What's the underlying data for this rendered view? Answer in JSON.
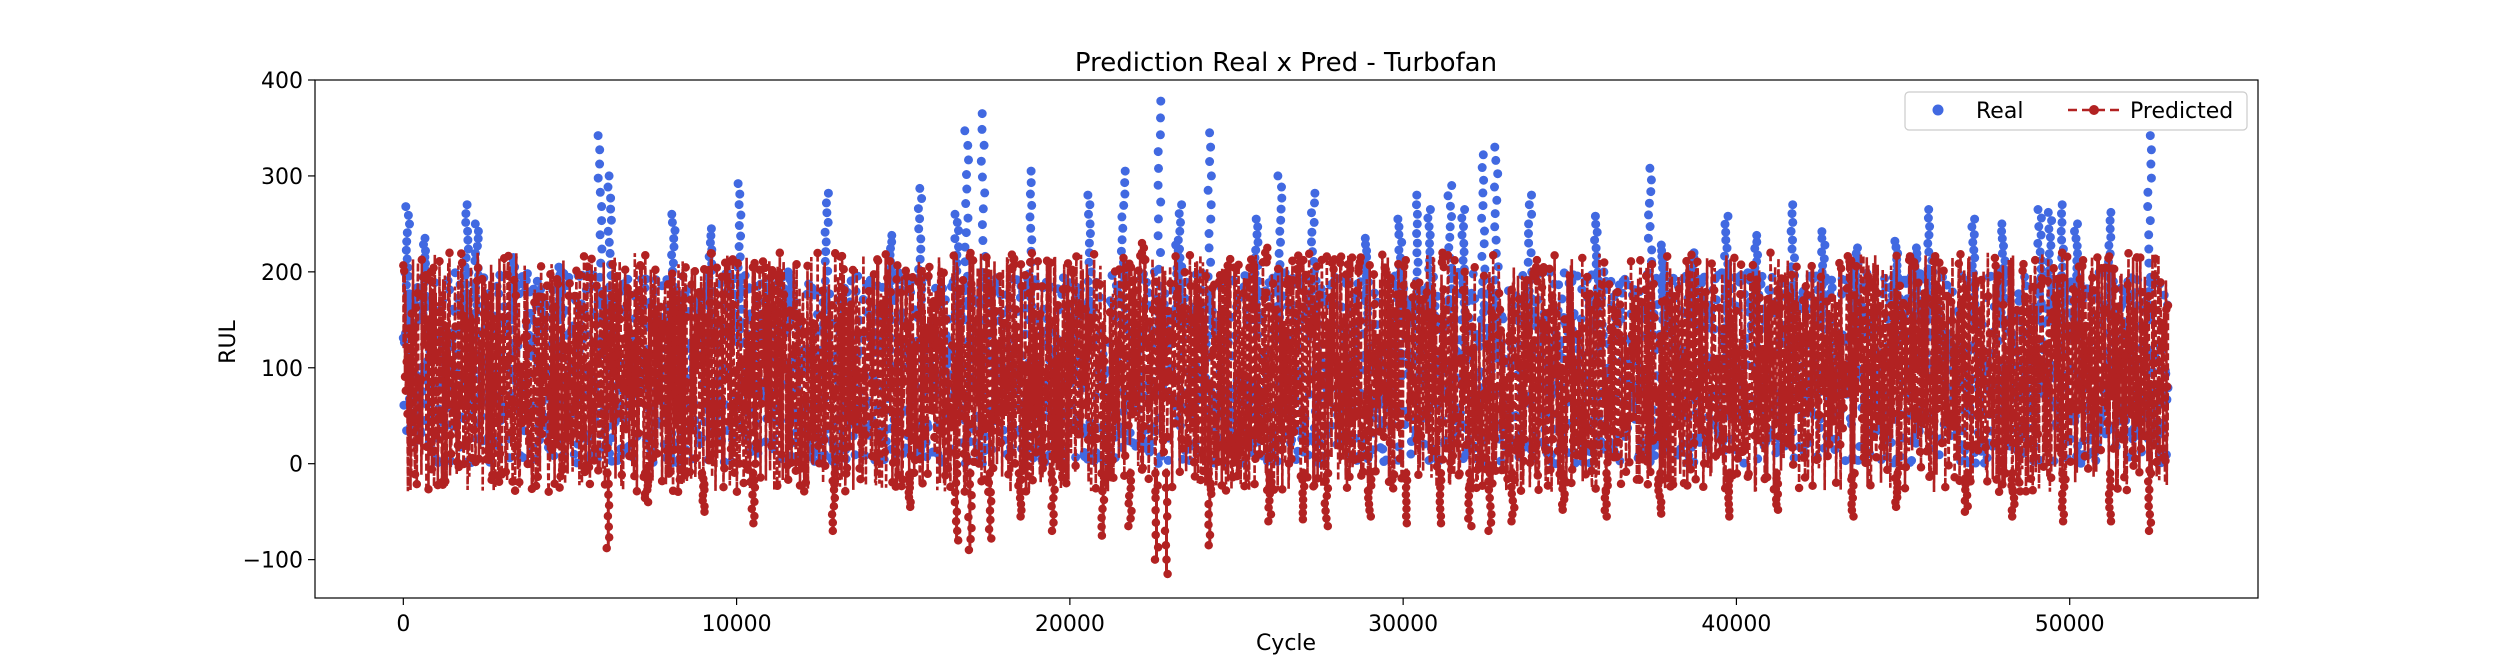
{
  "chart_data": {
    "type": "line",
    "title": "Prediction Real x Pred - Turbofan",
    "xlabel": "Cycle",
    "ylabel": "RUL",
    "xlim": [
      -2650,
      55650
    ],
    "ylim": [
      -140,
      400
    ],
    "xticks": [
      0,
      10000,
      20000,
      30000,
      40000,
      50000
    ],
    "xtick_labels": [
      "0",
      "10000",
      "20000",
      "30000",
      "40000",
      "50000"
    ],
    "yticks": [
      -100,
      0,
      100,
      200,
      300,
      400
    ],
    "ytick_labels": [
      "−100",
      "0",
      "100",
      "200",
      "300",
      "400"
    ],
    "grid": false,
    "legend_position": "top-right",
    "x_max": 52950,
    "series": [
      {
        "name": "Real",
        "style": "markers",
        "color": "#4169e1",
        "peaks": [
          [
            130,
            268
          ],
          [
            620,
            235
          ],
          [
            1900,
            270
          ],
          [
            2200,
            250
          ],
          [
            3300,
            215
          ],
          [
            4700,
            205
          ],
          [
            5900,
            342
          ],
          [
            6200,
            300
          ],
          [
            8100,
            260
          ],
          [
            9200,
            245
          ],
          [
            10100,
            292
          ],
          [
            11600,
            200
          ],
          [
            12700,
            282
          ],
          [
            14600,
            238
          ],
          [
            15500,
            287
          ],
          [
            16600,
            260
          ],
          [
            16900,
            347
          ],
          [
            17400,
            365
          ],
          [
            18800,
            305
          ],
          [
            20600,
            280
          ],
          [
            21600,
            305
          ],
          [
            22700,
            378
          ],
          [
            23200,
            228
          ],
          [
            23300,
            270
          ],
          [
            24200,
            345
          ],
          [
            25600,
            255
          ],
          [
            26300,
            300
          ],
          [
            27300,
            282
          ],
          [
            28900,
            235
          ],
          [
            29900,
            255
          ],
          [
            30400,
            280
          ],
          [
            30800,
            265
          ],
          [
            31400,
            290
          ],
          [
            31800,
            265
          ],
          [
            32400,
            322
          ],
          [
            32800,
            330
          ],
          [
            33800,
            280
          ],
          [
            35800,
            258
          ],
          [
            37400,
            308
          ],
          [
            37800,
            228
          ],
          [
            38700,
            220
          ],
          [
            39700,
            258
          ],
          [
            40600,
            238
          ],
          [
            41700,
            270
          ],
          [
            42600,
            242
          ],
          [
            43600,
            225
          ],
          [
            44800,
            232
          ],
          [
            45400,
            225
          ],
          [
            45800,
            265
          ],
          [
            47100,
            255
          ],
          [
            48000,
            250
          ],
          [
            49100,
            265
          ],
          [
            49400,
            262
          ],
          [
            49800,
            270
          ],
          [
            50200,
            250
          ],
          [
            51200,
            262
          ],
          [
            52400,
            342
          ]
        ],
        "range": [
          0,
          200
        ]
      },
      {
        "name": "Predicted",
        "style": "dashed-line-markers",
        "color": "#b22222",
        "range": [
          -30,
          220
        ],
        "dips": [
          [
            6150,
            -88
          ],
          [
            7300,
            -40
          ],
          [
            9000,
            -50
          ],
          [
            10500,
            -62
          ],
          [
            12900,
            -70
          ],
          [
            15200,
            -45
          ],
          [
            16600,
            -80
          ],
          [
            17000,
            -90
          ],
          [
            17600,
            -78
          ],
          [
            18500,
            -55
          ],
          [
            19500,
            -70
          ],
          [
            21000,
            -75
          ],
          [
            21800,
            -65
          ],
          [
            22600,
            -100
          ],
          [
            22900,
            -115
          ],
          [
            24200,
            -85
          ],
          [
            26000,
            -60
          ],
          [
            27000,
            -58
          ],
          [
            27700,
            -65
          ],
          [
            29000,
            -55
          ],
          [
            30100,
            -62
          ],
          [
            31100,
            -62
          ],
          [
            32000,
            -65
          ],
          [
            32600,
            -70
          ],
          [
            33300,
            -60
          ],
          [
            34800,
            -48
          ],
          [
            36100,
            -55
          ],
          [
            37700,
            -52
          ],
          [
            39800,
            -55
          ],
          [
            41200,
            -48
          ],
          [
            43500,
            -55
          ],
          [
            44800,
            -45
          ],
          [
            46900,
            -50
          ],
          [
            48300,
            -55
          ],
          [
            49800,
            -60
          ],
          [
            51200,
            -60
          ],
          [
            52400,
            -70
          ]
        ],
        "highs": [
          [
            22200,
            230
          ],
          [
            25900,
            225
          ],
          [
            31200,
            220
          ],
          [
            28700,
            215
          ],
          [
            34000,
            205
          ],
          [
            18300,
            218
          ]
        ]
      }
    ]
  }
}
